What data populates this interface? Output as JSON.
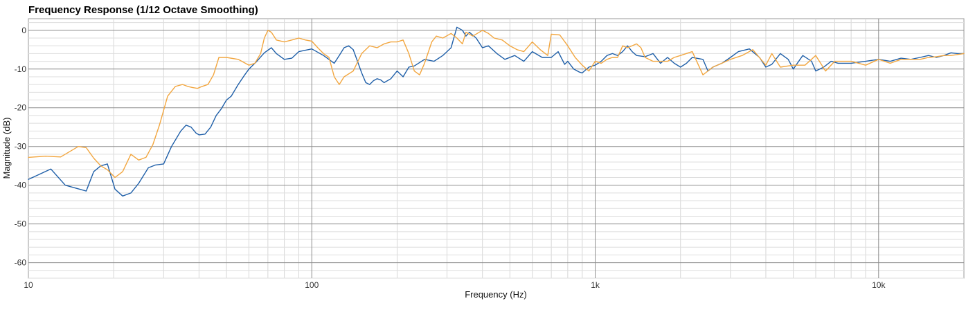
{
  "chart_data": {
    "type": "line",
    "title": "Frequency Response (1/12 Octave Smoothing)",
    "xlabel": "Frequency (Hz)",
    "ylabel": "Magnitude (dB)",
    "x_scale": "log",
    "xlim": [
      10,
      20000
    ],
    "ylim": [
      -64,
      3
    ],
    "x_ticks": [
      {
        "value": 10,
        "label": "10"
      },
      {
        "value": 100,
        "label": "100"
      },
      {
        "value": 1000,
        "label": "1k"
      },
      {
        "value": 10000,
        "label": "10k"
      }
    ],
    "y_ticks": [
      {
        "value": 0,
        "label": "0"
      },
      {
        "value": -10,
        "label": "-10"
      },
      {
        "value": -20,
        "label": "-20"
      },
      {
        "value": -30,
        "label": "-30"
      },
      {
        "value": -40,
        "label": "-40"
      },
      {
        "value": -50,
        "label": "-50"
      },
      {
        "value": -60,
        "label": "-60"
      }
    ],
    "grid": true,
    "minor_grid": true,
    "legend": "none",
    "series": [
      {
        "color": "#1f5fa8",
        "x": [
          10,
          12,
          13.5,
          16,
          17,
          18,
          19,
          20.2,
          21.5,
          23,
          24.5,
          26.5,
          28,
          30,
          32,
          34.5,
          36,
          37.5,
          39,
          40,
          42,
          44,
          46,
          48,
          50,
          52,
          55,
          58,
          60,
          64,
          68,
          72,
          75,
          80,
          85,
          90,
          100,
          110,
          120,
          125,
          130,
          135,
          140,
          145,
          150,
          155,
          160,
          165,
          170,
          175,
          180,
          190,
          200,
          210,
          220,
          230,
          250,
          270,
          290,
          310,
          325,
          340,
          350,
          360,
          380,
          400,
          420,
          450,
          480,
          520,
          560,
          600,
          650,
          700,
          740,
          780,
          800,
          840,
          880,
          900,
          950,
          1000,
          1050,
          1100,
          1150,
          1200,
          1250,
          1300,
          1350,
          1400,
          1500,
          1600,
          1700,
          1800,
          1900,
          2000,
          2100,
          2200,
          2400,
          2500,
          2600,
          2800,
          3000,
          3200,
          3500,
          3800,
          4000,
          4200,
          4500,
          4800,
          5000,
          5400,
          5800,
          6000,
          6400,
          6800,
          7200,
          8000,
          9000,
          10000,
          11000,
          12000,
          13000,
          14000,
          15000,
          16000,
          17000,
          18000,
          19000,
          20000
        ],
        "y": [
          -38.5,
          -35.8,
          -40,
          -41.5,
          -36.5,
          -35,
          -34.5,
          -41,
          -42.8,
          -42,
          -39.5,
          -35.5,
          -34.8,
          -34.5,
          -30,
          -26,
          -24.5,
          -25,
          -26.5,
          -27,
          -26.8,
          -25,
          -22,
          -20.2,
          -18,
          -17,
          -14,
          -11.5,
          -10,
          -8,
          -5.8,
          -4.5,
          -6,
          -7.5,
          -7.2,
          -5.5,
          -4.8,
          -6.5,
          -8.5,
          -6.5,
          -4.5,
          -4,
          -5,
          -8,
          -11,
          -13.5,
          -14,
          -13,
          -12.5,
          -12.8,
          -13.5,
          -12.5,
          -10.5,
          -12,
          -9.5,
          -9.2,
          -7.5,
          -8,
          -6.5,
          -4.5,
          0.8,
          0,
          -1.5,
          -0.5,
          -2,
          -4.5,
          -4,
          -6,
          -7.5,
          -6.5,
          -8,
          -5.5,
          -7,
          -7,
          -5.5,
          -8.8,
          -8,
          -10,
          -10.8,
          -11,
          -9.5,
          -9,
          -8,
          -6.5,
          -6,
          -6.5,
          -5.5,
          -4,
          -5.5,
          -6.5,
          -6.8,
          -6,
          -8.5,
          -7,
          -8.5,
          -9.5,
          -8.5,
          -7,
          -7.5,
          -10.5,
          -9.5,
          -8.5,
          -7,
          -5.5,
          -4.8,
          -7,
          -9.5,
          -8.8,
          -6,
          -7.5,
          -10,
          -6.5,
          -8,
          -10.5,
          -9.5,
          -8,
          -8.5,
          -8.5,
          -8,
          -7.5,
          -8,
          -7.2,
          -7.5,
          -7,
          -6.5,
          -7,
          -6.5,
          -5.8,
          -6,
          -6
        ]
      },
      {
        "color": "#f2a63f",
        "x": [
          10,
          11.5,
          13,
          15,
          16,
          17,
          18,
          19,
          20.2,
          21.5,
          23,
          24.5,
          26,
          27.5,
          29,
          31,
          33,
          35,
          36.5,
          38,
          39.5,
          41,
          43,
          45,
          47,
          50,
          55,
          60,
          63,
          66,
          68,
          70,
          72,
          75,
          80,
          85,
          90,
          95,
          100,
          105,
          110,
          115,
          120,
          125,
          130,
          140,
          150,
          160,
          170,
          180,
          190,
          200,
          210,
          220,
          230,
          240,
          250,
          265,
          275,
          290,
          310,
          325,
          340,
          350,
          360,
          370,
          400,
          420,
          440,
          470,
          500,
          530,
          560,
          600,
          640,
          680,
          700,
          750,
          800,
          850,
          900,
          950,
          1000,
          1050,
          1100,
          1150,
          1200,
          1250,
          1300,
          1400,
          1450,
          1500,
          1600,
          1800,
          1900,
          2000,
          2200,
          2400,
          2600,
          2800,
          3000,
          3300,
          3600,
          4000,
          4200,
          4500,
          5000,
          5500,
          6000,
          6500,
          7000,
          8000,
          9000,
          10000,
          11000,
          12000,
          13000,
          14000,
          15000,
          16000,
          17000,
          18000,
          20000
        ],
        "y": [
          -32.8,
          -32.5,
          -32.7,
          -30,
          -30.3,
          -33,
          -35,
          -36,
          -38,
          -36.5,
          -32,
          -33.5,
          -32.8,
          -29.5,
          -24.5,
          -17,
          -14.5,
          -14,
          -14.5,
          -14.8,
          -15,
          -14.5,
          -14,
          -11.5,
          -7,
          -7,
          -7.5,
          -9,
          -8.5,
          -6,
          -2,
          0,
          -0.5,
          -2.5,
          -3,
          -2.5,
          -2,
          -2.5,
          -2.8,
          -4.5,
          -6,
          -7,
          -12,
          -14,
          -12,
          -10.5,
          -6,
          -4,
          -4.5,
          -3.5,
          -3,
          -3,
          -2.5,
          -6,
          -10.5,
          -11.5,
          -8.5,
          -3,
          -1.5,
          -2,
          -0.8,
          -2,
          -3.5,
          -0.5,
          -1,
          -1.5,
          0,
          -0.8,
          -2,
          -2.5,
          -4,
          -5,
          -5.5,
          -3,
          -5,
          -6.5,
          -1,
          -1.2,
          -4,
          -7,
          -9,
          -10.5,
          -8,
          -8.5,
          -7.5,
          -7,
          -7,
          -4,
          -4.5,
          -3.5,
          -4.5,
          -7,
          -8,
          -8,
          -7,
          -6.5,
          -5.5,
          -11.5,
          -9.5,
          -8.5,
          -7.5,
          -6.5,
          -5,
          -9,
          -6,
          -9.5,
          -9,
          -9,
          -6.5,
          -10.5,
          -8,
          -8,
          -9,
          -7.5,
          -8.5,
          -7.5,
          -7.5,
          -7.5,
          -7,
          -6.8,
          -6.5,
          -6.5,
          -6
        ]
      }
    ]
  }
}
